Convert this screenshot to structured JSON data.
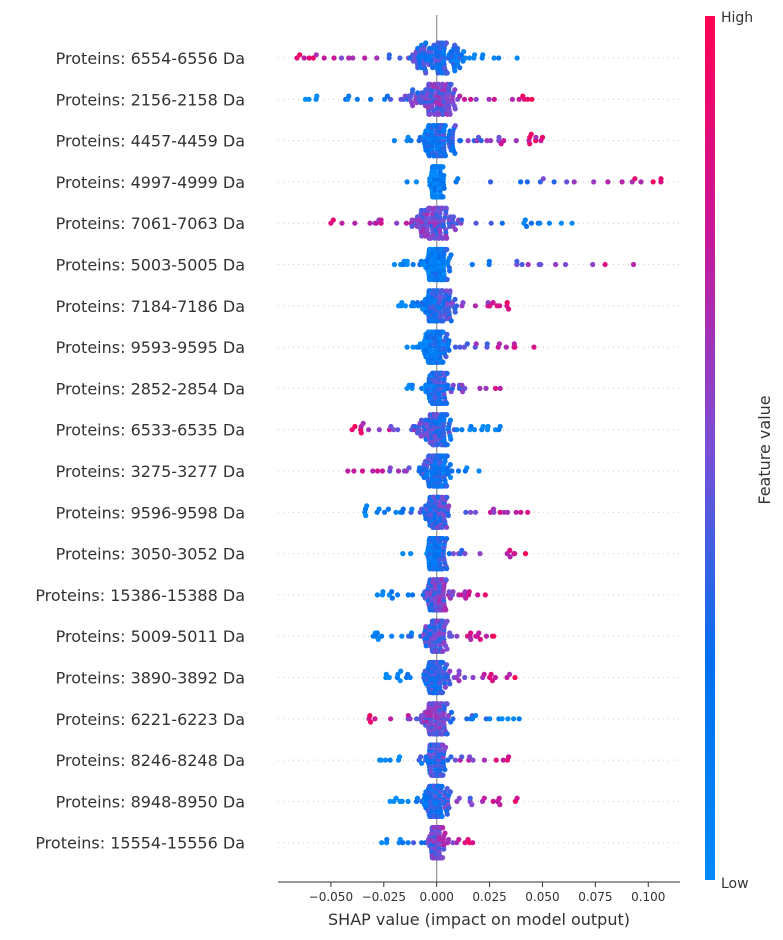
{
  "chart_data": {
    "type": "scatter",
    "subtype": "shap-beeswarm",
    "title": "",
    "xlabel": "SHAP value (impact on model output)",
    "xlim": [
      -0.075,
      0.115
    ],
    "xticks": [
      -0.05,
      -0.025,
      0.0,
      0.025,
      0.05,
      0.075,
      0.1
    ],
    "xtick_labels": [
      "−0.050",
      "−0.025",
      "0.000",
      "0.025",
      "0.050",
      "0.075",
      "0.100"
    ],
    "colorbar": {
      "label": "Feature value",
      "high_label": "High",
      "low_label": "Low",
      "low_color": "#008bfb",
      "high_color": "#ff0052"
    },
    "zero_line_color": "#999999",
    "grid_row_lines": true,
    "features": [
      {
        "name": "Proteins: 6554-6556 Da",
        "min": -0.066,
        "max": 0.038,
        "low_side": "positive",
        "spread": 0.05
      },
      {
        "name": "Proteins: 2156-2158 Da",
        "min": -0.062,
        "max": 0.045,
        "low_side": "negative",
        "spread": 0.048
      },
      {
        "name": "Proteins: 4457-4459 Da",
        "min": -0.02,
        "max": 0.05,
        "low_side": "negative",
        "spread": 0.035
      },
      {
        "name": "Proteins: 4997-4999 Da",
        "min": -0.014,
        "max": 0.106,
        "low_side": "negative",
        "spread": 0.012
      },
      {
        "name": "Proteins: 7061-7063 Da",
        "min": -0.05,
        "max": 0.064,
        "low_side": "positive",
        "spread": 0.045
      },
      {
        "name": "Proteins: 5003-5005 Da",
        "min": -0.02,
        "max": 0.093,
        "low_side": "negative",
        "spread": 0.025
      },
      {
        "name": "Proteins: 7184-7186 Da",
        "min": -0.018,
        "max": 0.034,
        "low_side": "negative",
        "spread": 0.03
      },
      {
        "name": "Proteins: 9593-9595 Da",
        "min": -0.014,
        "max": 0.046,
        "low_side": "negative",
        "spread": 0.022
      },
      {
        "name": "Proteins: 2852-2854 Da",
        "min": -0.014,
        "max": 0.03,
        "low_side": "negative",
        "spread": 0.02
      },
      {
        "name": "Proteins: 6533-6535 Da",
        "min": -0.04,
        "max": 0.03,
        "low_side": "positive",
        "spread": 0.035
      },
      {
        "name": "Proteins: 3275-3277 Da",
        "min": -0.042,
        "max": 0.02,
        "low_side": "positive",
        "spread": 0.025
      },
      {
        "name": "Proteins: 9596-9598 Da",
        "min": -0.034,
        "max": 0.043,
        "low_side": "negative",
        "spread": 0.02
      },
      {
        "name": "Proteins: 3050-3052 Da",
        "min": -0.016,
        "max": 0.042,
        "low_side": "negative",
        "spread": 0.018
      },
      {
        "name": "Proteins: 15386-15388 Da",
        "min": -0.028,
        "max": 0.023,
        "low_side": "negative",
        "spread": 0.02
      },
      {
        "name": "Proteins: 5009-5011 Da",
        "min": -0.03,
        "max": 0.027,
        "low_side": "negative",
        "spread": 0.02
      },
      {
        "name": "Proteins: 3890-3892 Da",
        "min": -0.024,
        "max": 0.037,
        "low_side": "negative",
        "spread": 0.02
      },
      {
        "name": "Proteins: 6221-6223 Da",
        "min": -0.032,
        "max": 0.039,
        "low_side": "positive",
        "spread": 0.025
      },
      {
        "name": "Proteins: 8246-8248 Da",
        "min": -0.027,
        "max": 0.034,
        "low_side": "negative",
        "spread": 0.02
      },
      {
        "name": "Proteins: 8948-8950 Da",
        "min": -0.022,
        "max": 0.038,
        "low_side": "negative",
        "spread": 0.02
      },
      {
        "name": "Proteins: 15554-15556 Da",
        "min": -0.026,
        "max": 0.017,
        "low_side": "negative",
        "spread": 0.015
      }
    ]
  }
}
